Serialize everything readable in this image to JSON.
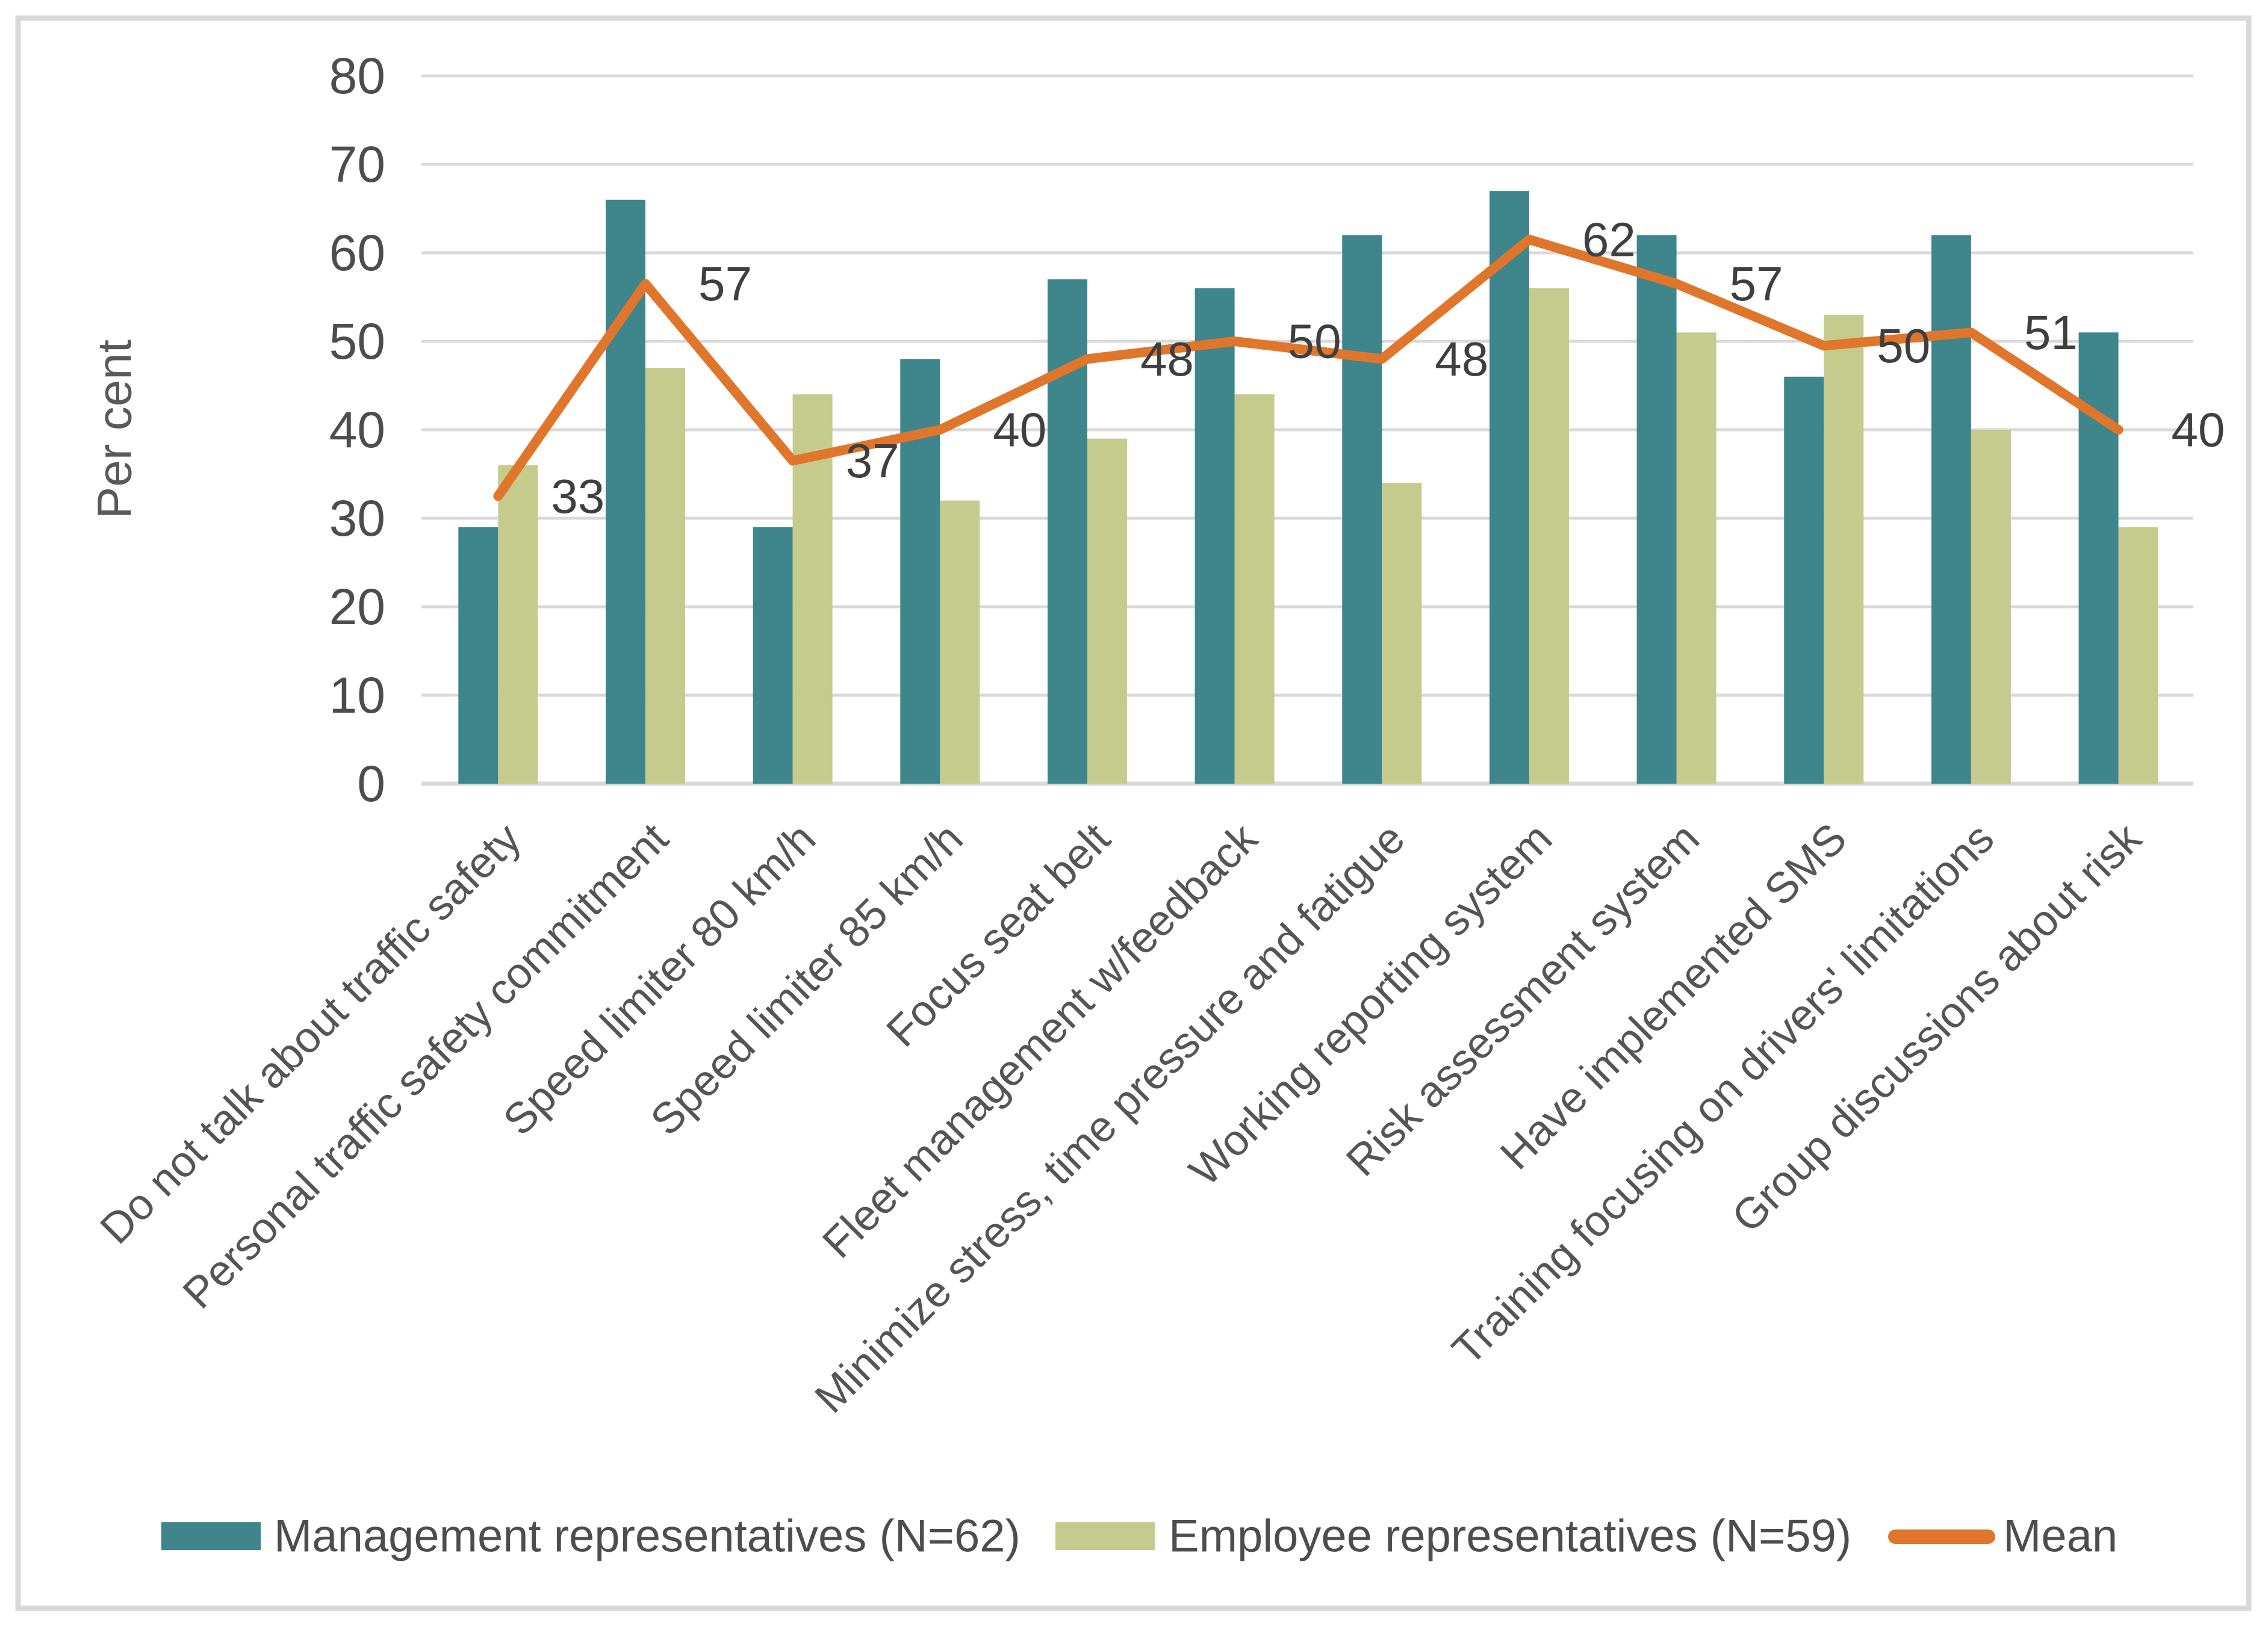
{
  "chart_data": {
    "type": "bar",
    "title": "",
    "xlabel": "",
    "ylabel": "Per cent",
    "ylim": [
      0,
      80
    ],
    "ytick_step": 10,
    "grid": true,
    "legend_position": "bottom",
    "categories": [
      "Do not talk about traffic safety",
      "Personal traffic safety commitment",
      "Speed limiter 80 km/h",
      "Speed limiter 85 km/h",
      "Focus seat belt",
      "Fleet management w/feedback",
      "Minimize stress, time pressure and fatigue",
      "Working reporting system",
      "Risk assessment system",
      "Have implemented SMS",
      "Training focusing on drivers' limitations",
      "Group discussions about risk"
    ],
    "series": [
      {
        "name": "Management representatives (N=62)",
        "color": "#3E858C",
        "values": [
          29,
          66,
          29,
          48,
          57,
          56,
          62,
          67,
          62,
          46,
          62,
          51
        ]
      },
      {
        "name": "Employee representatives (N=59)",
        "color": "#C4CB8C",
        "values": [
          36,
          47,
          44,
          32,
          39,
          44,
          34,
          56,
          51,
          53,
          40,
          29
        ]
      }
    ],
    "line_series": {
      "name": "Mean",
      "color": "#E0762B",
      "values": [
        32.5,
        56.5,
        36.5,
        40,
        48,
        50,
        48,
        61.5,
        56.5,
        49.5,
        51,
        40
      ],
      "labels": [
        "33",
        "57",
        "37",
        "40",
        "48",
        "50",
        "48",
        "62",
        "57",
        "50",
        "51",
        "40"
      ]
    }
  },
  "colors": {
    "background": "#FFFFFF",
    "border": "#D9D9D9",
    "gridline": "#D9D9D9",
    "tick_text": "#4D4D4D",
    "category_text": "#555555",
    "mean_label_text": "#3F3F3F"
  }
}
